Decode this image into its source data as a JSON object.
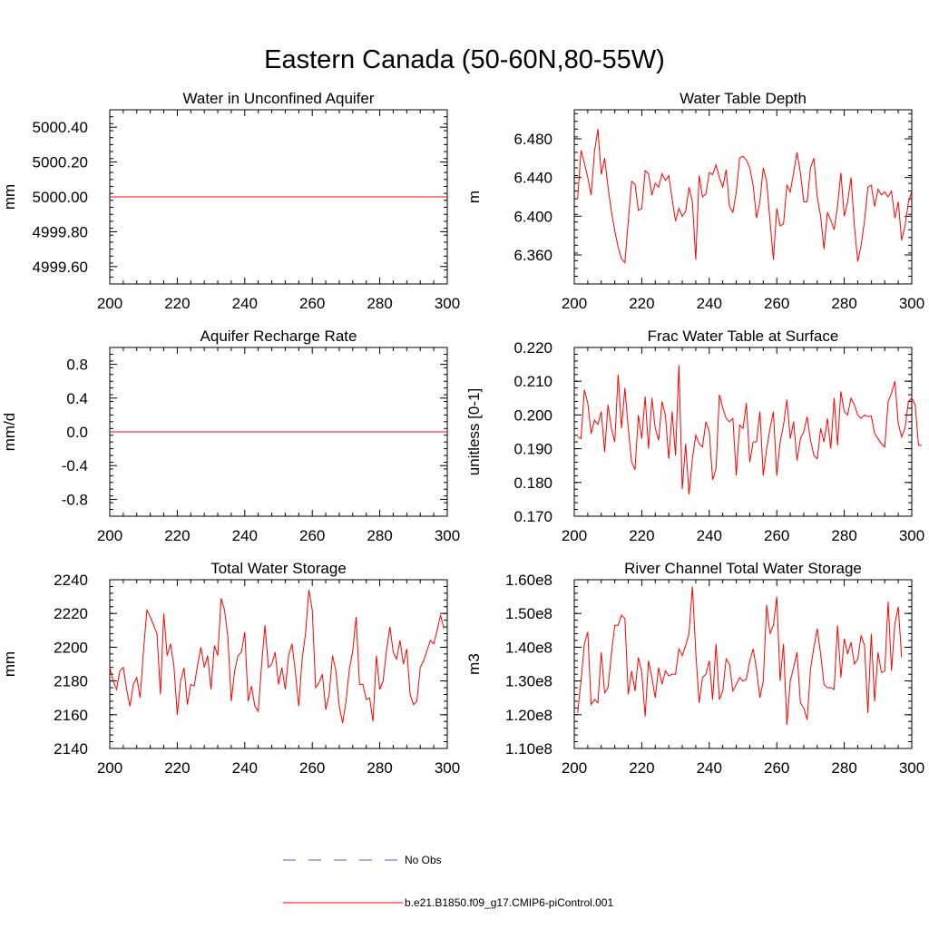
{
  "title": "Eastern Canada (50-60N,80-55W)",
  "colors": {
    "series": "#ff0000",
    "obs": "#5a5ad7",
    "axis": "#000000"
  },
  "legend": {
    "no_obs_label": "No Obs",
    "series_label": "b.e21.B1850.f09_g17.CMIP6-piControl.001"
  },
  "chart_data": [
    {
      "type": "line",
      "title": "Water in Unconfined Aquifer",
      "ylabel": "mm",
      "xlim": [
        200,
        300
      ],
      "ylim": [
        4999.5,
        5000.5
      ],
      "xticks": [
        200,
        220,
        240,
        260,
        280,
        300
      ],
      "xticklabels": [
        "200",
        "220",
        "240",
        "260",
        "280",
        "300"
      ],
      "yticks": [
        4999.6,
        4999.8,
        5000.0,
        5000.2,
        5000.4
      ],
      "yticklabels": [
        "4999.60",
        "4999.80",
        "5000.00",
        "5000.20",
        "5000.40"
      ],
      "yminor": 0.04,
      "series": [
        {
          "name": "b.e21.B1850.f09_g17.CMIP6-piControl.001",
          "x": [
            200,
            300
          ],
          "values": [
            5000.0,
            5000.0
          ]
        }
      ]
    },
    {
      "type": "line",
      "title": "Water Table Depth",
      "ylabel": "m",
      "xlim": [
        200,
        300
      ],
      "ylim": [
        6.33,
        6.51
      ],
      "xticks": [
        200,
        220,
        240,
        260,
        280,
        300
      ],
      "xticklabels": [
        "200",
        "220",
        "240",
        "260",
        "280",
        "300"
      ],
      "yticks": [
        6.36,
        6.4,
        6.44,
        6.48
      ],
      "yticklabels": [
        "6.360",
        "6.400",
        "6.440",
        "6.480"
      ],
      "yminor": 0.008,
      "series": [
        {
          "name": "b.e21.B1850.f09_g17.CMIP6-piControl.001",
          "x0": 201,
          "values": [
            6.418,
            6.468,
            6.455,
            6.44,
            6.422,
            6.467,
            6.49,
            6.443,
            6.46,
            6.43,
            6.405,
            6.385,
            6.368,
            6.356,
            6.352,
            6.395,
            6.436,
            6.433,
            6.406,
            6.408,
            6.447,
            6.444,
            6.422,
            6.434,
            6.43,
            6.444,
            6.437,
            6.442,
            6.418,
            6.395,
            6.408,
            6.4,
            6.405,
            6.43,
            6.415,
            6.355,
            6.442,
            6.42,
            6.423,
            6.445,
            6.443,
            6.453,
            6.44,
            6.43,
            6.448,
            6.41,
            6.404,
            6.425,
            6.46,
            6.462,
            6.458,
            6.45,
            6.432,
            6.398,
            6.415,
            6.45,
            6.436,
            6.395,
            6.355,
            6.408,
            6.39,
            6.392,
            6.432,
            6.425,
            6.445,
            6.466,
            6.445,
            6.415,
            6.415,
            6.45,
            6.46,
            6.42,
            6.4,
            6.366,
            6.404,
            6.396,
            6.386,
            6.41,
            6.445,
            6.4,
            6.415,
            6.44,
            6.39,
            6.353,
            6.37,
            6.395,
            6.43,
            6.432,
            6.41,
            6.428,
            6.422,
            6.425,
            6.42,
            6.426,
            6.398,
            6.415,
            6.375,
            6.39,
            6.414,
            6.426
          ]
        }
      ]
    },
    {
      "type": "line",
      "title": "Aquifer Recharge Rate",
      "ylabel": "mm/d",
      "xlim": [
        200,
        300
      ],
      "ylim": [
        -1.0,
        1.0
      ],
      "xticks": [
        200,
        220,
        240,
        260,
        280,
        300
      ],
      "xticklabels": [
        "200",
        "220",
        "240",
        "260",
        "280",
        "300"
      ],
      "yticks": [
        -0.8,
        -0.4,
        0.0,
        0.4,
        0.8
      ],
      "yticklabels": [
        "-0.8",
        "-0.4",
        "0.0",
        "0.4",
        "0.8"
      ],
      "yminor": 0.08,
      "series": [
        {
          "name": "b.e21.B1850.f09_g17.CMIP6-piControl.001",
          "x": [
            200,
            300
          ],
          "values": [
            0.0,
            0.0
          ]
        }
      ]
    },
    {
      "type": "line",
      "title": "Frac Water Table at Surface",
      "ylabel": "unitless [0-1]",
      "xlim": [
        200,
        300
      ],
      "ylim": [
        0.17,
        0.22
      ],
      "xticks": [
        200,
        220,
        240,
        260,
        280,
        300
      ],
      "xticklabels": [
        "200",
        "220",
        "240",
        "260",
        "280",
        "300"
      ],
      "yticks": [
        0.17,
        0.18,
        0.19,
        0.2,
        0.21,
        0.22
      ],
      "yticklabels": [
        "0.170",
        "0.180",
        "0.190",
        "0.200",
        "0.210",
        "0.220"
      ],
      "yminor": 0.002,
      "series": [
        {
          "name": "b.e21.B1850.f09_g17.CMIP6-piControl.001",
          "x0": 201,
          "values": [
            0.1935,
            0.193,
            0.2075,
            0.2035,
            0.1945,
            0.1985,
            0.1972,
            0.201,
            0.189,
            0.203,
            0.196,
            0.192,
            0.212,
            0.196,
            0.208,
            0.196,
            0.186,
            0.1838,
            0.2,
            0.193,
            0.2055,
            0.19,
            0.205,
            0.196,
            0.1925,
            0.204,
            0.2,
            0.187,
            0.201,
            0.188,
            0.2148,
            0.178,
            0.1915,
            0.1765,
            0.187,
            0.194,
            0.1915,
            0.1905,
            0.198,
            0.195,
            0.1808,
            0.184,
            0.206,
            0.202,
            0.199,
            0.198,
            0.199,
            0.182,
            0.197,
            0.196,
            0.2035,
            0.186,
            0.192,
            0.192,
            0.201,
            0.182,
            0.19,
            0.196,
            0.201,
            0.182,
            0.192,
            0.197,
            0.2045,
            0.193,
            0.198,
            0.1865,
            0.193,
            0.195,
            0.1995,
            0.1925,
            0.188,
            0.187,
            0.196,
            0.192,
            0.199,
            0.19,
            0.205,
            0.191,
            0.207,
            0.201,
            0.2,
            0.205,
            0.203,
            0.2,
            0.199,
            0.2,
            0.1995,
            0.1997,
            0.1945,
            0.193,
            0.1915,
            0.1905,
            0.204,
            0.2065,
            0.21,
            0.1975,
            0.1935,
            0.196,
            0.204,
            0.205,
            0.203,
            0.191,
            0.191
          ]
        }
      ]
    },
    {
      "type": "line",
      "title": "Total Water Storage",
      "ylabel": "mm",
      "xlim": [
        200,
        300
      ],
      "ylim": [
        2140,
        2240
      ],
      "xticks": [
        200,
        220,
        240,
        260,
        280,
        300
      ],
      "xticklabels": [
        "200",
        "220",
        "240",
        "260",
        "280",
        "300"
      ],
      "yticks": [
        2140,
        2160,
        2180,
        2200,
        2220,
        2240
      ],
      "yticklabels": [
        "2140",
        "2160",
        "2180",
        "2200",
        "2220",
        "2240"
      ],
      "yminor": 4,
      "series": [
        {
          "name": "b.e21.B1850.f09_g17.CMIP6-piControl.001",
          "x0": 200,
          "values": [
            2188,
            2180,
            2175,
            2186,
            2188,
            2175,
            2165,
            2178,
            2182,
            2170,
            2198,
            2222,
            2218,
            2213,
            2208,
            2172,
            2220,
            2195,
            2202,
            2189,
            2160,
            2180,
            2188,
            2166,
            2178,
            2177,
            2189,
            2200,
            2188,
            2195,
            2175,
            2201,
            2195,
            2229,
            2222,
            2206,
            2168,
            2186,
            2195,
            2197,
            2209,
            2168,
            2177,
            2165,
            2162,
            2190,
            2213,
            2188,
            2190,
            2197,
            2178,
            2188,
            2175,
            2195,
            2202,
            2185,
            2165,
            2193,
            2208,
            2234,
            2222,
            2176,
            2179,
            2184,
            2163,
            2172,
            2195,
            2186,
            2165,
            2155,
            2168,
            2187,
            2198,
            2218,
            2178,
            2178,
            2169,
            2170,
            2156,
            2195,
            2175,
            2180,
            2198,
            2212,
            2197,
            2193,
            2204,
            2190,
            2199,
            2172,
            2166,
            2168,
            2188,
            2192,
            2198,
            2204,
            2202,
            2210,
            2219,
            2211
          ]
        }
      ]
    },
    {
      "type": "line",
      "title": "River Channel Total Water Storage",
      "ylabel": "m3",
      "xlim": [
        200,
        300
      ],
      "ylim": [
        110000000.0,
        160000000.0
      ],
      "xticks": [
        200,
        220,
        240,
        260,
        280,
        300
      ],
      "xticklabels": [
        "200",
        "220",
        "240",
        "260",
        "280",
        "300"
      ],
      "yticks": [
        110000000.0,
        120000000.0,
        130000000.0,
        140000000.0,
        150000000.0,
        160000000.0
      ],
      "yticklabels": [
        "1.10e8",
        "1.20e8",
        "1.30e8",
        "1.40e8",
        "1.50e8",
        "1.60e8"
      ],
      "yminor": 2000000,
      "series": [
        {
          "name": "b.e21.B1850.f09_g17.CMIP6-piControl.001",
          "x0": 201,
          "values": [
            120500000.0,
            130000000.0,
            141000000.0,
            144500000.0,
            123000000.0,
            124500000.0,
            123500000.0,
            138500000.0,
            126500000.0,
            128000000.0,
            138000000.0,
            146500000.0,
            146500000.0,
            149500000.0,
            148500000.0,
            126000000.0,
            133000000.0,
            127000000.0,
            137000000.0,
            132500000.0,
            119500000.0,
            136000000.0,
            131000000.0,
            125000000.0,
            134000000.0,
            129000000.0,
            133000000.0,
            131500000.0,
            132000000.0,
            132000000.0,
            139500000.0,
            137500000.0,
            140500000.0,
            144000000.0,
            158000000.0,
            138500000.0,
            123500000.0,
            131000000.0,
            132000000.0,
            136000000.0,
            124500000.0,
            141000000.0,
            124500000.0,
            127000000.0,
            136500000.0,
            135000000.0,
            127000000.0,
            129000000.0,
            131000000.0,
            130000000.0,
            130500000.0,
            136000000.0,
            139500000.0,
            133500000.0,
            125000000.0,
            130000000.0,
            152500000.0,
            144000000.0,
            146500000.0,
            155000000.0,
            130000000.0,
            141000000.0,
            117000000.0,
            130000000.0,
            134000000.0,
            138500000.0,
            123500000.0,
            122000000.0,
            118500000.0,
            133500000.0,
            140000000.0,
            145500000.0,
            138000000.0,
            129000000.0,
            128000000.0,
            128000000.0,
            127500000.0,
            146500000.0,
            131000000.0,
            142500000.0,
            138000000.0,
            141500000.0,
            135000000.0,
            136500000.0,
            143500000.0,
            140500000.0,
            120500000.0,
            144000000.0,
            124000000.0,
            138500000.0,
            132500000.0,
            133000000.0,
            153500000.0,
            133000000.0,
            147000000.0,
            152000000.0,
            137000000.0
          ]
        }
      ]
    }
  ]
}
